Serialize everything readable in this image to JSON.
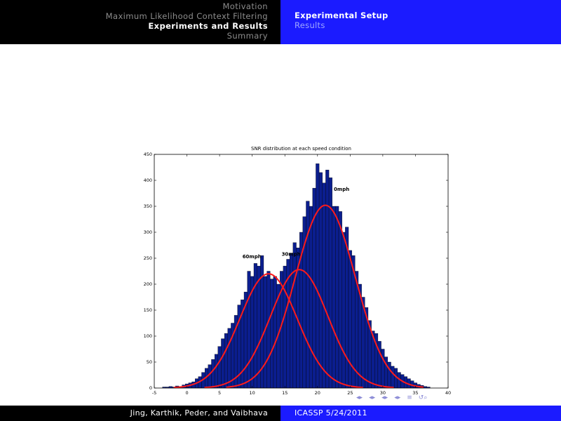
{
  "header": {
    "sections": [
      {
        "label": "Motivation",
        "active": false
      },
      {
        "label": "Maximum Likelihood Context Filtering",
        "active": false
      },
      {
        "label": "Experiments and Results",
        "active": true
      },
      {
        "label": "Summary",
        "active": false
      }
    ],
    "subsections": [
      {
        "label": "Experimental Setup",
        "active": true
      },
      {
        "label": "Results",
        "active": false
      }
    ]
  },
  "footer": {
    "authors": "Jing, Karthik, Peder, and Vaibhava",
    "venue": "ICASSP 5/24/2011"
  },
  "nav_controls": {
    "icons": [
      "frame-prev-icon",
      "frame-next-icon",
      "subsection-prev-icon",
      "subsection-next-icon",
      "section-prev-icon",
      "section-next-icon",
      "slide-prev-icon",
      "slide-next-icon",
      "align-icon",
      "search-icon"
    ],
    "glyphs": [
      "◂",
      "▸",
      "◂",
      "▸",
      "◂",
      "▸",
      "◂",
      "▸",
      "≡",
      "↺⌕"
    ]
  },
  "colors": {
    "bar_fill": "#0b1e8f",
    "curve": "#ff1a1a",
    "header_left": "#000000",
    "header_right": "#1b1bff"
  },
  "chart_data": {
    "type": "bar",
    "title": "SNR distribution at each speed condition",
    "xlabel": "",
    "ylabel": "",
    "xlim": [
      -5,
      40
    ],
    "ylim": [
      0,
      450
    ],
    "xticks": [
      -5,
      0,
      5,
      10,
      15,
      20,
      25,
      30,
      35,
      40
    ],
    "yticks": [
      0,
      50,
      100,
      150,
      200,
      250,
      300,
      350,
      400,
      450
    ],
    "bin_width": 0.5,
    "x": [
      -3.5,
      -3,
      -2.5,
      -2,
      -1.5,
      -1,
      -0.5,
      0,
      0.5,
      1,
      1.5,
      2,
      2.5,
      3,
      3.5,
      4,
      4.5,
      5,
      5.5,
      6,
      6.5,
      7,
      7.5,
      8,
      8.5,
      9,
      9.5,
      10,
      10.5,
      11,
      11.5,
      12,
      12.5,
      13,
      13.5,
      14,
      14.5,
      15,
      15.5,
      16,
      16.5,
      17,
      17.5,
      18,
      18.5,
      19,
      19.5,
      20,
      20.5,
      21,
      21.5,
      22,
      22.5,
      23,
      23.5,
      24,
      24.5,
      25,
      25.5,
      26,
      26.5,
      27,
      27.5,
      28,
      28.5,
      29,
      29.5,
      30,
      30.5,
      31,
      31.5,
      32,
      32.5,
      33,
      33.5,
      34,
      34.5,
      35,
      35.5,
      36,
      36.5,
      37
    ],
    "values": [
      2,
      2,
      3,
      2,
      4,
      3,
      6,
      8,
      10,
      12,
      18,
      22,
      30,
      38,
      45,
      55,
      65,
      80,
      95,
      105,
      115,
      125,
      140,
      160,
      170,
      185,
      225,
      215,
      240,
      235,
      255,
      215,
      225,
      210,
      215,
      200,
      225,
      235,
      248,
      260,
      280,
      270,
      300,
      330,
      360,
      350,
      385,
      432,
      415,
      395,
      420,
      405,
      350,
      350,
      340,
      300,
      310,
      265,
      255,
      225,
      200,
      175,
      155,
      130,
      110,
      105,
      90,
      75,
      60,
      50,
      42,
      38,
      30,
      26,
      22,
      18,
      14,
      10,
      7,
      5,
      3,
      2
    ],
    "series": [
      {
        "name": "60mph",
        "mean": 12.5,
        "peak": 220,
        "sigma": 4.4
      },
      {
        "name": "30mph",
        "mean": 17.2,
        "peak": 228,
        "sigma": 4.4
      },
      {
        "name": "0mph",
        "mean": 21.2,
        "peak": 352,
        "sigma": 4.6
      }
    ],
    "annotations": [
      {
        "text": "0mph",
        "x": 22.5,
        "y": 380
      },
      {
        "text": "30mph",
        "x": 14.5,
        "y": 255
      },
      {
        "text": "60mph",
        "x": 8.5,
        "y": 250
      }
    ],
    "grid": false
  }
}
